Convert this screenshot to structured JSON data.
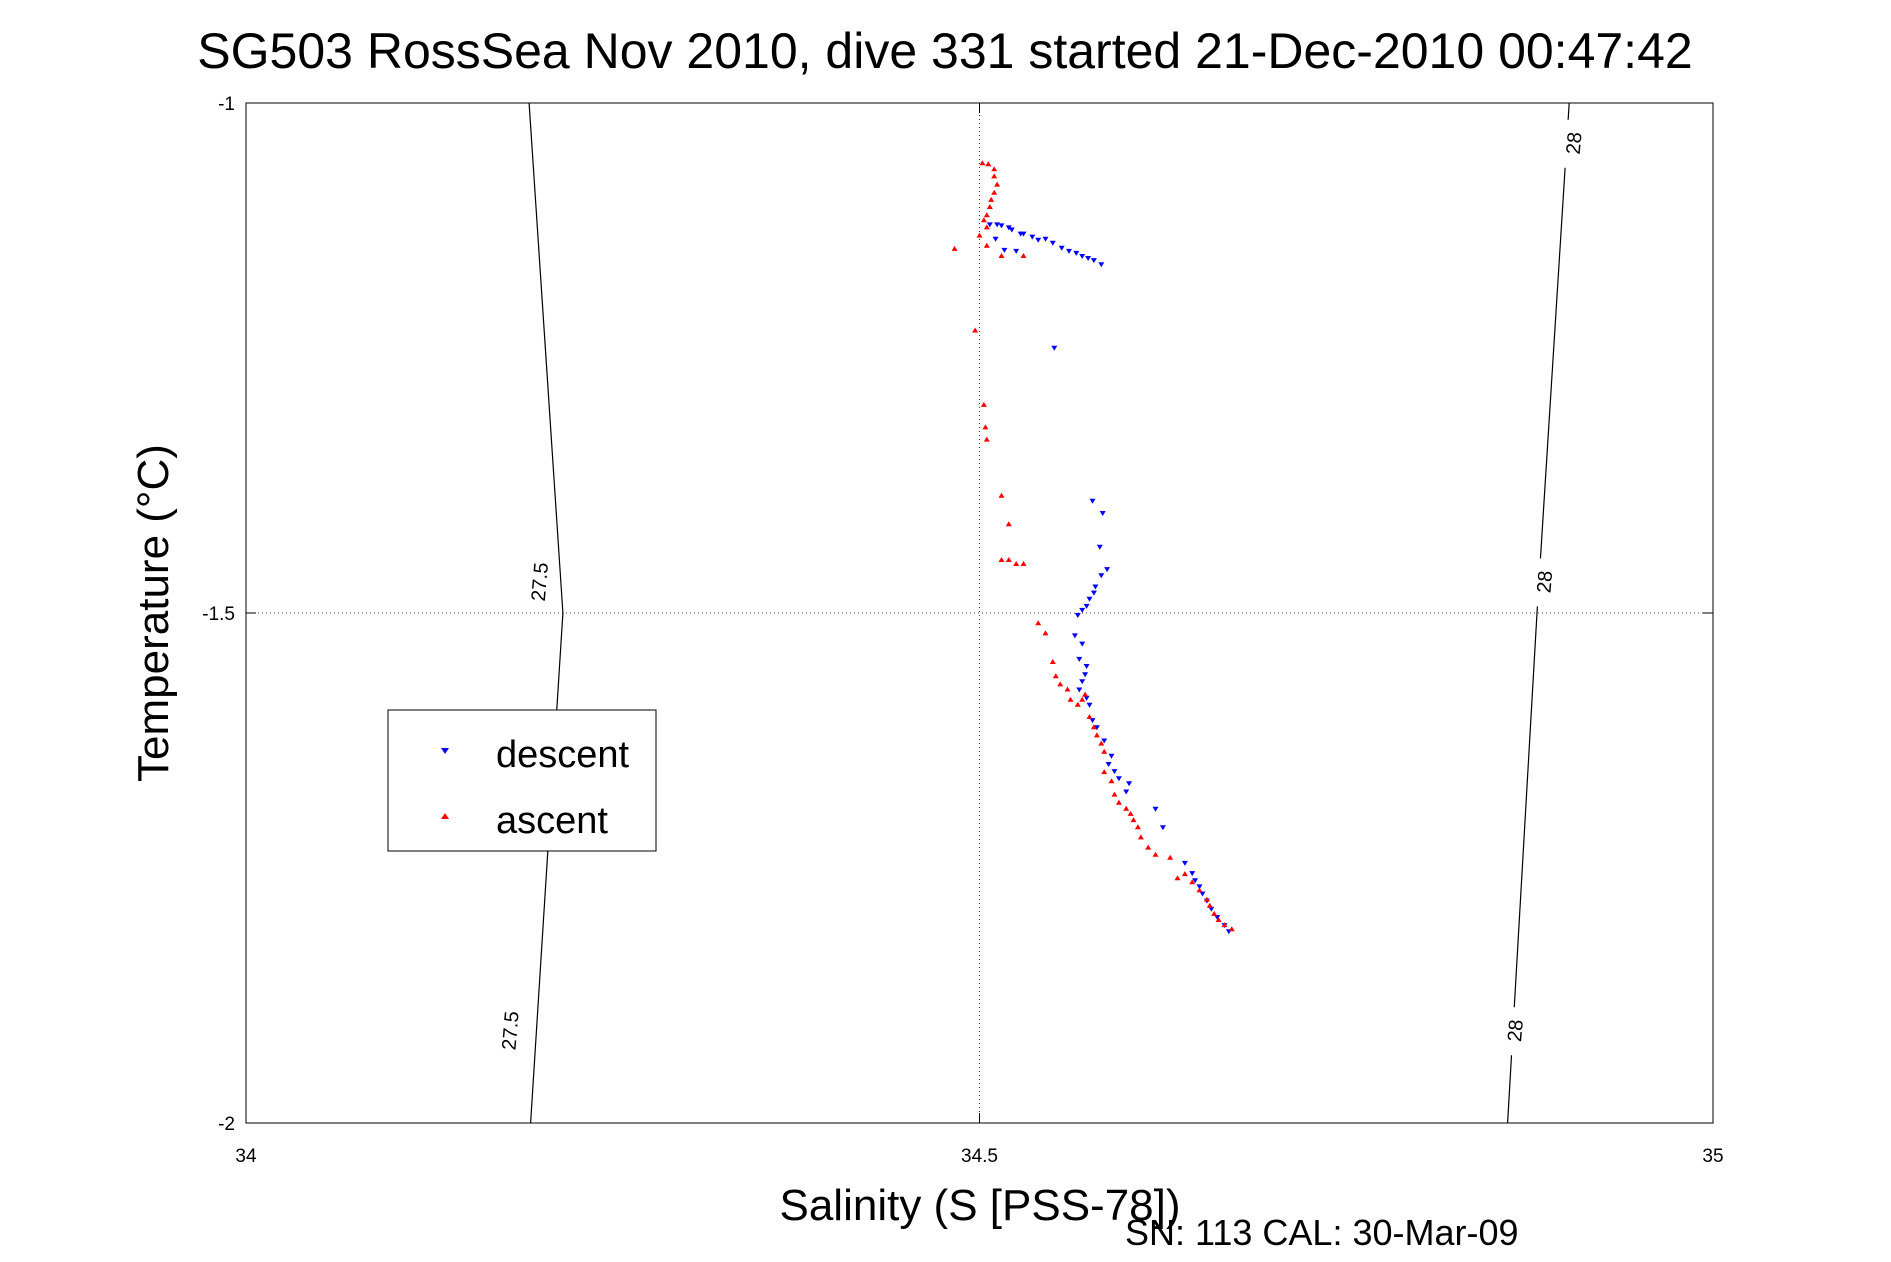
{
  "chart_data": {
    "type": "scatter",
    "title": "SG503 RossSea Nov 2010, dive 331 started 21-Dec-2010 00:47:42",
    "xlabel": "Salinity (S [PSS-78])",
    "ylabel": "Temperature (°C)",
    "xlim": [
      34,
      35
    ],
    "ylim": [
      -2,
      -1
    ],
    "x_ticks": [
      "34",
      "34.5",
      "35"
    ],
    "y_ticks": [
      "-1",
      "-1.5",
      "-2"
    ],
    "grid": true,
    "legend_position": "left",
    "footer": "SN: 113  CAL: 30-Mar-09",
    "contours": [
      {
        "label": "27.5",
        "points": [
          [
            34.194,
            -2.0
          ],
          [
            34.216,
            -1.5
          ],
          [
            34.193,
            -1.0
          ]
        ]
      },
      {
        "label": "28",
        "points": [
          [
            34.86,
            -2.0
          ],
          [
            34.88,
            -1.5
          ],
          [
            34.902,
            -1.0
          ]
        ]
      }
    ],
    "contour_labels": [
      {
        "text": "27.5",
        "x": 34.18,
        "y": -1.91
      },
      {
        "text": "27.5",
        "x": 34.2,
        "y": -1.47
      },
      {
        "text": "28",
        "x": 34.865,
        "y": -1.91
      },
      {
        "text": "28",
        "x": 34.885,
        "y": -1.47
      },
      {
        "text": "28",
        "x": 34.905,
        "y": -1.04
      }
    ],
    "series": [
      {
        "name": "descent",
        "color": "#0000ff",
        "marker": "triangle-down",
        "points": [
          [
            34.507,
            -1.119
          ],
          [
            34.512,
            -1.119
          ],
          [
            34.515,
            -1.12
          ],
          [
            34.52,
            -1.122
          ],
          [
            34.522,
            -1.124
          ],
          [
            34.528,
            -1.128
          ],
          [
            34.53,
            -1.128
          ],
          [
            34.536,
            -1.131
          ],
          [
            34.54,
            -1.134
          ],
          [
            34.545,
            -1.133
          ],
          [
            34.55,
            -1.137
          ],
          [
            34.556,
            -1.142
          ],
          [
            34.561,
            -1.145
          ],
          [
            34.566,
            -1.147
          ],
          [
            34.57,
            -1.15
          ],
          [
            34.574,
            -1.152
          ],
          [
            34.578,
            -1.154
          ],
          [
            34.583,
            -1.158
          ],
          [
            34.511,
            -1.133
          ],
          [
            34.517,
            -1.144
          ],
          [
            34.525,
            -1.145
          ],
          [
            34.551,
            -1.24
          ],
          [
            34.577,
            -1.39
          ],
          [
            34.584,
            -1.402
          ],
          [
            34.582,
            -1.435
          ],
          [
            34.587,
            -1.457
          ],
          [
            34.583,
            -1.463
          ],
          [
            34.579,
            -1.474
          ],
          [
            34.575,
            -1.486
          ],
          [
            34.578,
            -1.48
          ],
          [
            34.573,
            -1.493
          ],
          [
            34.57,
            -1.497
          ],
          [
            34.567,
            -1.502
          ],
          [
            34.565,
            -1.522
          ],
          [
            34.57,
            -1.53
          ],
          [
            34.568,
            -1.545
          ],
          [
            34.573,
            -1.552
          ],
          [
            34.572,
            -1.56
          ],
          [
            34.57,
            -1.567
          ],
          [
            34.568,
            -1.575
          ],
          [
            34.573,
            -1.583
          ],
          [
            34.575,
            -1.59
          ],
          [
            34.577,
            -1.605
          ],
          [
            34.58,
            -1.612
          ],
          [
            34.585,
            -1.625
          ],
          [
            34.59,
            -1.64
          ],
          [
            34.588,
            -1.648
          ],
          [
            34.592,
            -1.655
          ],
          [
            34.595,
            -1.662
          ],
          [
            34.602,
            -1.667
          ],
          [
            34.6,
            -1.675
          ],
          [
            34.62,
            -1.692
          ],
          [
            34.625,
            -1.71
          ],
          [
            34.64,
            -1.745
          ],
          [
            34.645,
            -1.755
          ],
          [
            34.647,
            -1.762
          ],
          [
            34.65,
            -1.768
          ],
          [
            34.652,
            -1.775
          ],
          [
            34.655,
            -1.782
          ],
          [
            34.658,
            -1.79
          ],
          [
            34.662,
            -1.798
          ],
          [
            34.667,
            -1.806
          ],
          [
            34.67,
            -1.812
          ]
        ]
      },
      {
        "name": "ascent",
        "color": "#ff0000",
        "marker": "triangle-up",
        "points": [
          [
            34.502,
            -1.059
          ],
          [
            34.506,
            -1.06
          ],
          [
            34.51,
            -1.065
          ],
          [
            34.51,
            -1.072
          ],
          [
            34.512,
            -1.08
          ],
          [
            34.51,
            -1.088
          ],
          [
            34.508,
            -1.095
          ],
          [
            34.507,
            -1.102
          ],
          [
            34.505,
            -1.11
          ],
          [
            34.503,
            -1.115
          ],
          [
            34.505,
            -1.122
          ],
          [
            34.5,
            -1.13
          ],
          [
            34.505,
            -1.14
          ],
          [
            34.515,
            -1.15
          ],
          [
            34.53,
            -1.15
          ],
          [
            34.483,
            -1.143
          ],
          [
            34.497,
            -1.223
          ],
          [
            34.503,
            -1.296
          ],
          [
            34.504,
            -1.318
          ],
          [
            34.505,
            -1.33
          ],
          [
            34.515,
            -1.385
          ],
          [
            34.52,
            -1.413
          ],
          [
            34.515,
            -1.448
          ],
          [
            34.52,
            -1.448
          ],
          [
            34.525,
            -1.452
          ],
          [
            34.53,
            -1.452
          ],
          [
            34.54,
            -1.51
          ],
          [
            34.545,
            -1.52
          ],
          [
            34.55,
            -1.548
          ],
          [
            34.552,
            -1.562
          ],
          [
            34.555,
            -1.57
          ],
          [
            34.56,
            -1.575
          ],
          [
            34.562,
            -1.585
          ],
          [
            34.567,
            -1.59
          ],
          [
            34.57,
            -1.585
          ],
          [
            34.572,
            -1.58
          ],
          [
            34.575,
            -1.602
          ],
          [
            34.578,
            -1.612
          ],
          [
            34.58,
            -1.62
          ],
          [
            34.583,
            -1.628
          ],
          [
            34.585,
            -1.636
          ],
          [
            34.585,
            -1.656
          ],
          [
            34.59,
            -1.665
          ],
          [
            34.592,
            -1.678
          ],
          [
            34.595,
            -1.686
          ],
          [
            34.6,
            -1.692
          ],
          [
            34.603,
            -1.697
          ],
          [
            34.605,
            -1.703
          ],
          [
            34.608,
            -1.71
          ],
          [
            34.61,
            -1.72
          ],
          [
            34.615,
            -1.73
          ],
          [
            34.62,
            -1.737
          ],
          [
            34.63,
            -1.74
          ],
          [
            34.635,
            -1.76
          ],
          [
            34.64,
            -1.756
          ],
          [
            34.645,
            -1.764
          ],
          [
            34.65,
            -1.772
          ],
          [
            34.655,
            -1.781
          ],
          [
            34.657,
            -1.787
          ],
          [
            34.66,
            -1.795
          ],
          [
            34.663,
            -1.801
          ],
          [
            34.667,
            -1.806
          ],
          [
            34.672,
            -1.81
          ]
        ]
      }
    ]
  }
}
